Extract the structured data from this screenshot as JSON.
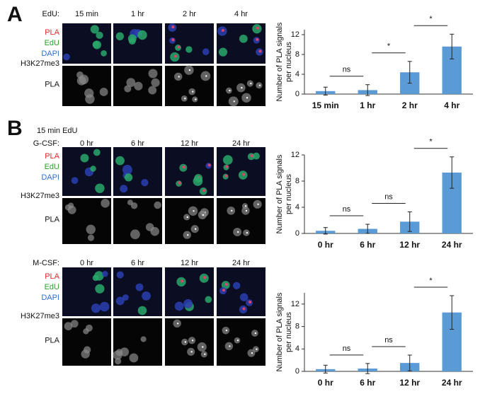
{
  "panels": [
    {
      "label": "A",
      "row_header": "EdU:",
      "columns": [
        "15 min",
        "1 hr",
        "2 hr",
        "4 hr"
      ],
      "channels": [
        "PLA",
        "EdU",
        "DAPI"
      ],
      "target": "H3K27me3",
      "lower": "PLA"
    },
    {
      "label": "B",
      "note": "15 min EdU",
      "row_header": "G-CSF:",
      "columns": [
        "0 hr",
        "6 hr",
        "12 hr",
        "24 hr"
      ],
      "channels": [
        "PLA",
        "EdU",
        "DAPI"
      ],
      "target": "H3K27me3",
      "lower": "PLA"
    },
    {
      "row_header": "M-CSF:",
      "columns": [
        "0 hr",
        "6 hr",
        "12 hr",
        "24 hr"
      ],
      "channels": [
        "PLA",
        "EdU",
        "DAPI"
      ],
      "target": "H3K27me3",
      "lower": "PLA"
    }
  ],
  "chart_data": [
    {
      "type": "bar",
      "ylabel": [
        "Number of PLA signals",
        "per nucleus"
      ],
      "categories": [
        "15 min",
        "1 hr",
        "2 hr",
        "4 hr"
      ],
      "values": [
        0.6,
        0.8,
        4.4,
        9.6
      ],
      "errors": [
        0.8,
        1.1,
        2.2,
        2.5
      ],
      "color": "#5b9bd5",
      "ylim": [
        0,
        13
      ],
      "yticks": [
        0,
        4,
        8,
        12
      ],
      "comparisons": [
        "ns",
        "*",
        "*"
      ]
    },
    {
      "type": "bar",
      "ylabel": [
        "Number of PLA signals",
        "per nucleus"
      ],
      "categories": [
        "0 hr",
        "6 hr",
        "12 hr",
        "24 hr"
      ],
      "values": [
        0.4,
        0.7,
        1.8,
        9.3
      ],
      "errors": [
        0.5,
        0.7,
        1.5,
        2.4
      ],
      "color": "#5b9bd5",
      "ylim": [
        0,
        12
      ],
      "yticks": [
        0,
        4,
        8,
        12
      ],
      "comparisons": [
        "ns",
        "ns",
        "*"
      ]
    },
    {
      "type": "bar",
      "ylabel": [
        "Number of PLA signals",
        "per nucleus"
      ],
      "categories": [
        "0 hr",
        "6 hr",
        "12 hr",
        "24 hr"
      ],
      "values": [
        0.4,
        0.5,
        1.5,
        10.5
      ],
      "errors": [
        0.7,
        0.9,
        1.4,
        3.0
      ],
      "color": "#5b9bd5",
      "ylim": [
        0,
        14
      ],
      "yticks": [
        0,
        4,
        8,
        12
      ],
      "comparisons": [
        "ns",
        "ns",
        "*"
      ]
    }
  ]
}
